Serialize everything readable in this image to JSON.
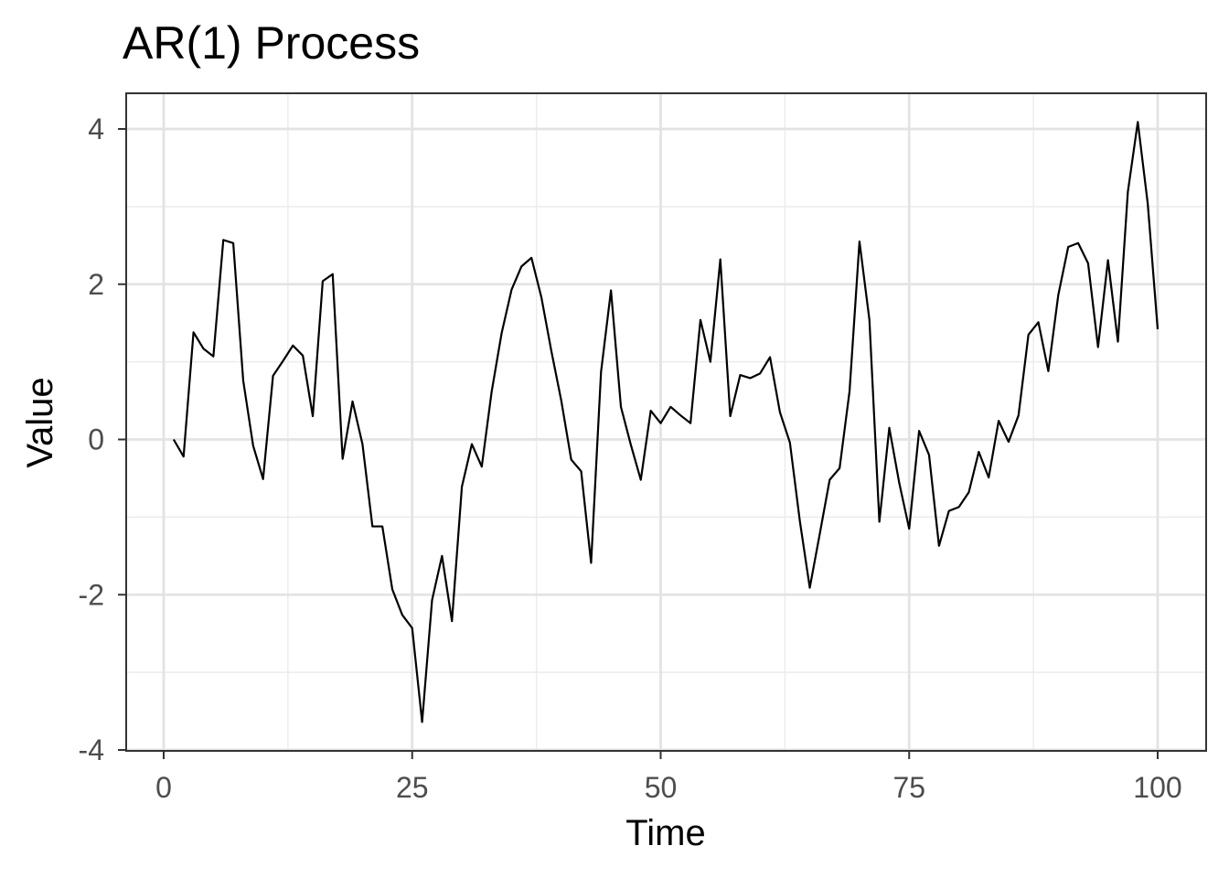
{
  "chart_data": {
    "type": "line",
    "title": "AR(1) Process",
    "xlabel": "Time",
    "ylabel": "Value",
    "xlim": [
      0,
      100
    ],
    "ylim": [
      -4,
      4
    ],
    "x_ticks": [
      0,
      25,
      50,
      75,
      100
    ],
    "x_tick_labels": [
      "0",
      "25",
      "50",
      "75",
      "100"
    ],
    "y_ticks": [
      -4,
      -2,
      0,
      2,
      4
    ],
    "y_tick_labels": [
      "-4",
      "-2",
      "0",
      "2",
      "4"
    ],
    "grid": true,
    "legend": "none",
    "line_color": "#000000",
    "series": [
      {
        "x": [
          1,
          2,
          3,
          4,
          5,
          6,
          7,
          8,
          9,
          10,
          11,
          12,
          13,
          14,
          15,
          16,
          17,
          18,
          19,
          20,
          21,
          22,
          23,
          24,
          25,
          26,
          27,
          28,
          29,
          30,
          31,
          32,
          33,
          34,
          35,
          36,
          37,
          38,
          39,
          40,
          41,
          42,
          43,
          44,
          45,
          46,
          47,
          48,
          49,
          50,
          51,
          52,
          53,
          54,
          55,
          56,
          57,
          58,
          59,
          60,
          61,
          62,
          63,
          64,
          65,
          66,
          67,
          68,
          69,
          70,
          71,
          72,
          73,
          74,
          75,
          76,
          77,
          78,
          79,
          80,
          81,
          82,
          83,
          84,
          85,
          86,
          87,
          88,
          89,
          90,
          91,
          92,
          93,
          94,
          95,
          96,
          97,
          98,
          99,
          100
        ],
        "values": [
          0.0,
          -0.22,
          1.38,
          1.17,
          1.07,
          2.57,
          2.53,
          0.76,
          -0.08,
          -0.51,
          0.82,
          1.01,
          1.21,
          1.08,
          0.3,
          2.04,
          2.13,
          -0.25,
          0.49,
          -0.06,
          -1.12,
          -1.12,
          -1.93,
          -2.26,
          -2.43,
          -3.64,
          -2.07,
          -1.5,
          -2.34,
          -0.61,
          -0.06,
          -0.35,
          0.62,
          1.37,
          1.93,
          2.23,
          2.34,
          1.83,
          1.14,
          0.5,
          -0.26,
          -0.41,
          -1.59,
          0.87,
          1.92,
          0.42,
          -0.07,
          -0.52,
          0.37,
          0.21,
          0.42,
          0.31,
          0.21,
          1.54,
          1.0,
          2.32,
          0.3,
          0.83,
          0.79,
          0.85,
          1.06,
          0.35,
          -0.04,
          -1.05,
          -1.91,
          -1.22,
          -0.52,
          -0.37,
          0.62,
          2.55,
          1.54,
          -1.06,
          0.15,
          -0.56,
          -1.15,
          0.11,
          -0.2,
          -1.37,
          -0.92,
          -0.87,
          -0.68,
          -0.16,
          -0.49,
          0.24,
          -0.03,
          0.31,
          1.35,
          1.51,
          0.88,
          1.86,
          2.48,
          2.53,
          2.27,
          1.19,
          2.31,
          1.26,
          3.19,
          4.09,
          3.04,
          1.42
        ]
      }
    ]
  }
}
